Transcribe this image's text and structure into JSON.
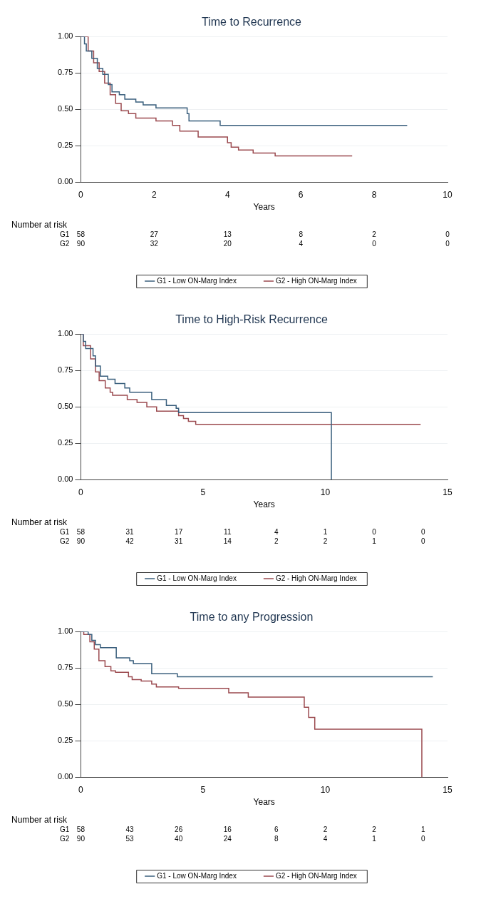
{
  "chart_data": [
    {
      "type": "step",
      "title": "Time to Recurrence",
      "xlabel": "Years",
      "xlim": [
        0,
        10
      ],
      "xticks": [
        0,
        2,
        4,
        6,
        8,
        10
      ],
      "ylim": [
        0,
        1
      ],
      "yticks": [
        {
          "value": 0,
          "label": "0.00"
        },
        {
          "value": 0.25,
          "label": "0.25"
        },
        {
          "value": 0.5,
          "label": "0.50"
        },
        {
          "value": 0.75,
          "label": "0.75"
        },
        {
          "value": 1,
          "label": "1.00"
        }
      ],
      "grid": "y",
      "legend": "bottom",
      "series": [
        {
          "name": "G1 - Low ON-Marg Index",
          "color": "#3a5f7d",
          "x": [
            0,
            0.1,
            0.15,
            0.3,
            0.45,
            0.6,
            0.75,
            0.85,
            1.05,
            1.2,
            1.5,
            1.7,
            2.05,
            2.9,
            2.95,
            3.8,
            8.9
          ],
          "values": [
            1,
            0.95,
            0.9,
            0.85,
            0.78,
            0.74,
            0.67,
            0.62,
            0.6,
            0.57,
            0.55,
            0.53,
            0.51,
            0.47,
            0.42,
            0.39,
            0.39
          ]
        },
        {
          "name": "G2 - High ON-Marg Index",
          "color": "#9b4a4f",
          "x": [
            0,
            0.2,
            0.35,
            0.5,
            0.65,
            0.8,
            0.95,
            1.1,
            1.3,
            1.5,
            2.05,
            2.5,
            2.7,
            3.2,
            4.0,
            4.1,
            4.3,
            4.7,
            5.3,
            7.4
          ],
          "values": [
            1,
            0.9,
            0.82,
            0.76,
            0.68,
            0.6,
            0.54,
            0.49,
            0.47,
            0.44,
            0.42,
            0.39,
            0.35,
            0.31,
            0.27,
            0.24,
            0.22,
            0.2,
            0.18,
            0.18
          ]
        }
      ],
      "annotations": [
        "Number at risk",
        "G1 58 27 13 8 2 0",
        "G2 90 32 20 4 0 0"
      ]
    },
    {
      "type": "step",
      "title": "Time to High-Risk Recurrence",
      "xlabel": "Years",
      "xlim": [
        0,
        15
      ],
      "xticks": [
        0,
        5,
        10,
        15
      ],
      "ylim": [
        0,
        1
      ],
      "yticks": [
        {
          "value": 0,
          "label": "0.00"
        },
        {
          "value": 0.25,
          "label": "0.25"
        },
        {
          "value": 0.5,
          "label": "0.50"
        },
        {
          "value": 0.75,
          "label": "0.75"
        },
        {
          "value": 1,
          "label": "1.00"
        }
      ],
      "grid": "y",
      "legend": "bottom",
      "series": [
        {
          "name": "G1 - Low ON-Marg Index",
          "color": "#3a5f7d",
          "x": [
            0,
            0.1,
            0.2,
            0.5,
            0.6,
            0.8,
            1.1,
            1.4,
            1.8,
            2.0,
            2.9,
            3.5,
            3.9,
            4.0,
            10.25
          ],
          "values": [
            1,
            0.95,
            0.9,
            0.85,
            0.78,
            0.71,
            0.69,
            0.66,
            0.63,
            0.6,
            0.55,
            0.51,
            0.49,
            0.46,
            0
          ]
        },
        {
          "name": "G2 - High ON-Marg Index",
          "color": "#9b4a4f",
          "x": [
            0,
            0.1,
            0.4,
            0.6,
            0.75,
            1.0,
            1.2,
            1.3,
            1.9,
            2.3,
            2.7,
            3.1,
            4.0,
            4.2,
            4.4,
            4.7,
            13.9
          ],
          "values": [
            1,
            0.92,
            0.83,
            0.74,
            0.68,
            0.63,
            0.6,
            0.58,
            0.55,
            0.53,
            0.5,
            0.47,
            0.44,
            0.42,
            0.4,
            0.38,
            0.38
          ]
        }
      ],
      "annotations": [
        "Number at risk",
        "G1 58 31 17 11 4 1 0 0",
        "G2 90 42 31 14 2 2 1 0"
      ]
    },
    {
      "type": "step",
      "title": "Time to any Progression",
      "xlabel": "Years",
      "xlim": [
        0,
        15
      ],
      "xticks": [
        0,
        5,
        10,
        15
      ],
      "ylim": [
        0,
        1
      ],
      "yticks": [
        {
          "value": 0,
          "label": "0.00"
        },
        {
          "value": 0.25,
          "label": "0.25"
        },
        {
          "value": 0.5,
          "label": "0.50"
        },
        {
          "value": 0.75,
          "label": "0.75"
        },
        {
          "value": 1,
          "label": "1.00"
        }
      ],
      "grid": "y",
      "legend": "bottom",
      "series": [
        {
          "name": "G1 - Low ON-Marg Index",
          "color": "#3a5f7d",
          "x": [
            0,
            0.3,
            0.45,
            0.6,
            0.8,
            1.45,
            2.0,
            2.15,
            2.9,
            3.95,
            14.4
          ],
          "values": [
            1,
            0.98,
            0.94,
            0.91,
            0.89,
            0.82,
            0.8,
            0.78,
            0.71,
            0.69,
            0.69
          ]
        },
        {
          "name": "G2 - High ON-Marg Index",
          "color": "#9b4a4f",
          "x": [
            0,
            0.12,
            0.37,
            0.55,
            0.74,
            0.99,
            1.23,
            1.42,
            1.95,
            2.1,
            2.47,
            2.9,
            3.09,
            4.0,
            6.05,
            6.85,
            9.14,
            9.32,
            9.57,
            13.95
          ],
          "values": [
            1,
            0.98,
            0.93,
            0.88,
            0.8,
            0.76,
            0.73,
            0.72,
            0.69,
            0.67,
            0.66,
            0.64,
            0.62,
            0.61,
            0.58,
            0.55,
            0.48,
            0.41,
            0.33,
            0
          ]
        }
      ],
      "annotations": [
        "Number at risk",
        "G1 58 43 26 16 6 2 2 1",
        "G2 90 53 40 24 8 4 1 0"
      ]
    }
  ]
}
